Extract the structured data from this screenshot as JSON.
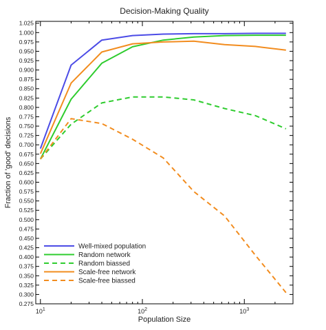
{
  "chart_data": {
    "type": "line",
    "title": "Decision-Making Quality",
    "xlabel": "Population Size",
    "ylabel": "Fraction of 'good' decisions",
    "x_scale": "log",
    "xlim": [
      9,
      3000
    ],
    "ylim": [
      0.275,
      1.03
    ],
    "x_ticks": [
      {
        "value": 10,
        "base": "10",
        "exp": "1"
      },
      {
        "value": 100,
        "base": "10",
        "exp": "2"
      },
      {
        "value": 1000,
        "base": "10",
        "exp": "3"
      }
    ],
    "y_ticks": [
      "0.275",
      "0.300",
      "0.325",
      "0.350",
      "0.375",
      "0.400",
      "0.425",
      "0.450",
      "0.475",
      "0.500",
      "0.525",
      "0.550",
      "0.575",
      "0.600",
      "0.625",
      "0.650",
      "0.675",
      "0.700",
      "0.725",
      "0.750",
      "0.775",
      "0.800",
      "0.825",
      "0.850",
      "0.875",
      "0.900",
      "0.925",
      "0.950",
      "0.975",
      "1.000",
      "1.025"
    ],
    "legend_position": "bottom-left",
    "series": [
      {
        "name": "Well-mixed population",
        "color": "#4b4be6",
        "dash": "solid",
        "x": [
          10,
          20,
          40,
          80,
          160,
          320,
          640,
          1280,
          2560
        ],
        "values": [
          0.69,
          0.913,
          0.98,
          0.992,
          0.996,
          0.997,
          0.997,
          0.998,
          0.998
        ]
      },
      {
        "name": "Random network",
        "color": "#2ecc2e",
        "dash": "solid",
        "x": [
          10,
          20,
          40,
          80,
          160,
          320,
          640,
          1280,
          2560
        ],
        "values": [
          0.662,
          0.822,
          0.918,
          0.962,
          0.98,
          0.988,
          0.992,
          0.993,
          0.993
        ]
      },
      {
        "name": "Random biassed",
        "color": "#2ecc2e",
        "dash": "dashed",
        "x": [
          10,
          20,
          40,
          80,
          160,
          320,
          640,
          1280,
          2560
        ],
        "values": [
          0.662,
          0.755,
          0.812,
          0.828,
          0.828,
          0.82,
          0.797,
          0.778,
          0.743
        ]
      },
      {
        "name": "Scale-free network",
        "color": "#f28c1e",
        "dash": "solid",
        "x": [
          10,
          20,
          40,
          80,
          160,
          320,
          640,
          1280,
          2560
        ],
        "values": [
          0.676,
          0.865,
          0.948,
          0.97,
          0.975,
          0.977,
          0.968,
          0.963,
          0.953
        ]
      },
      {
        "name": "Scale-free biassed",
        "color": "#f28c1e",
        "dash": "dashed",
        "x": [
          10,
          20,
          40,
          80,
          160,
          320,
          640,
          1280,
          2560
        ],
        "values": [
          0.662,
          0.77,
          0.757,
          0.715,
          0.665,
          0.575,
          0.51,
          0.405,
          0.305
        ]
      }
    ]
  }
}
